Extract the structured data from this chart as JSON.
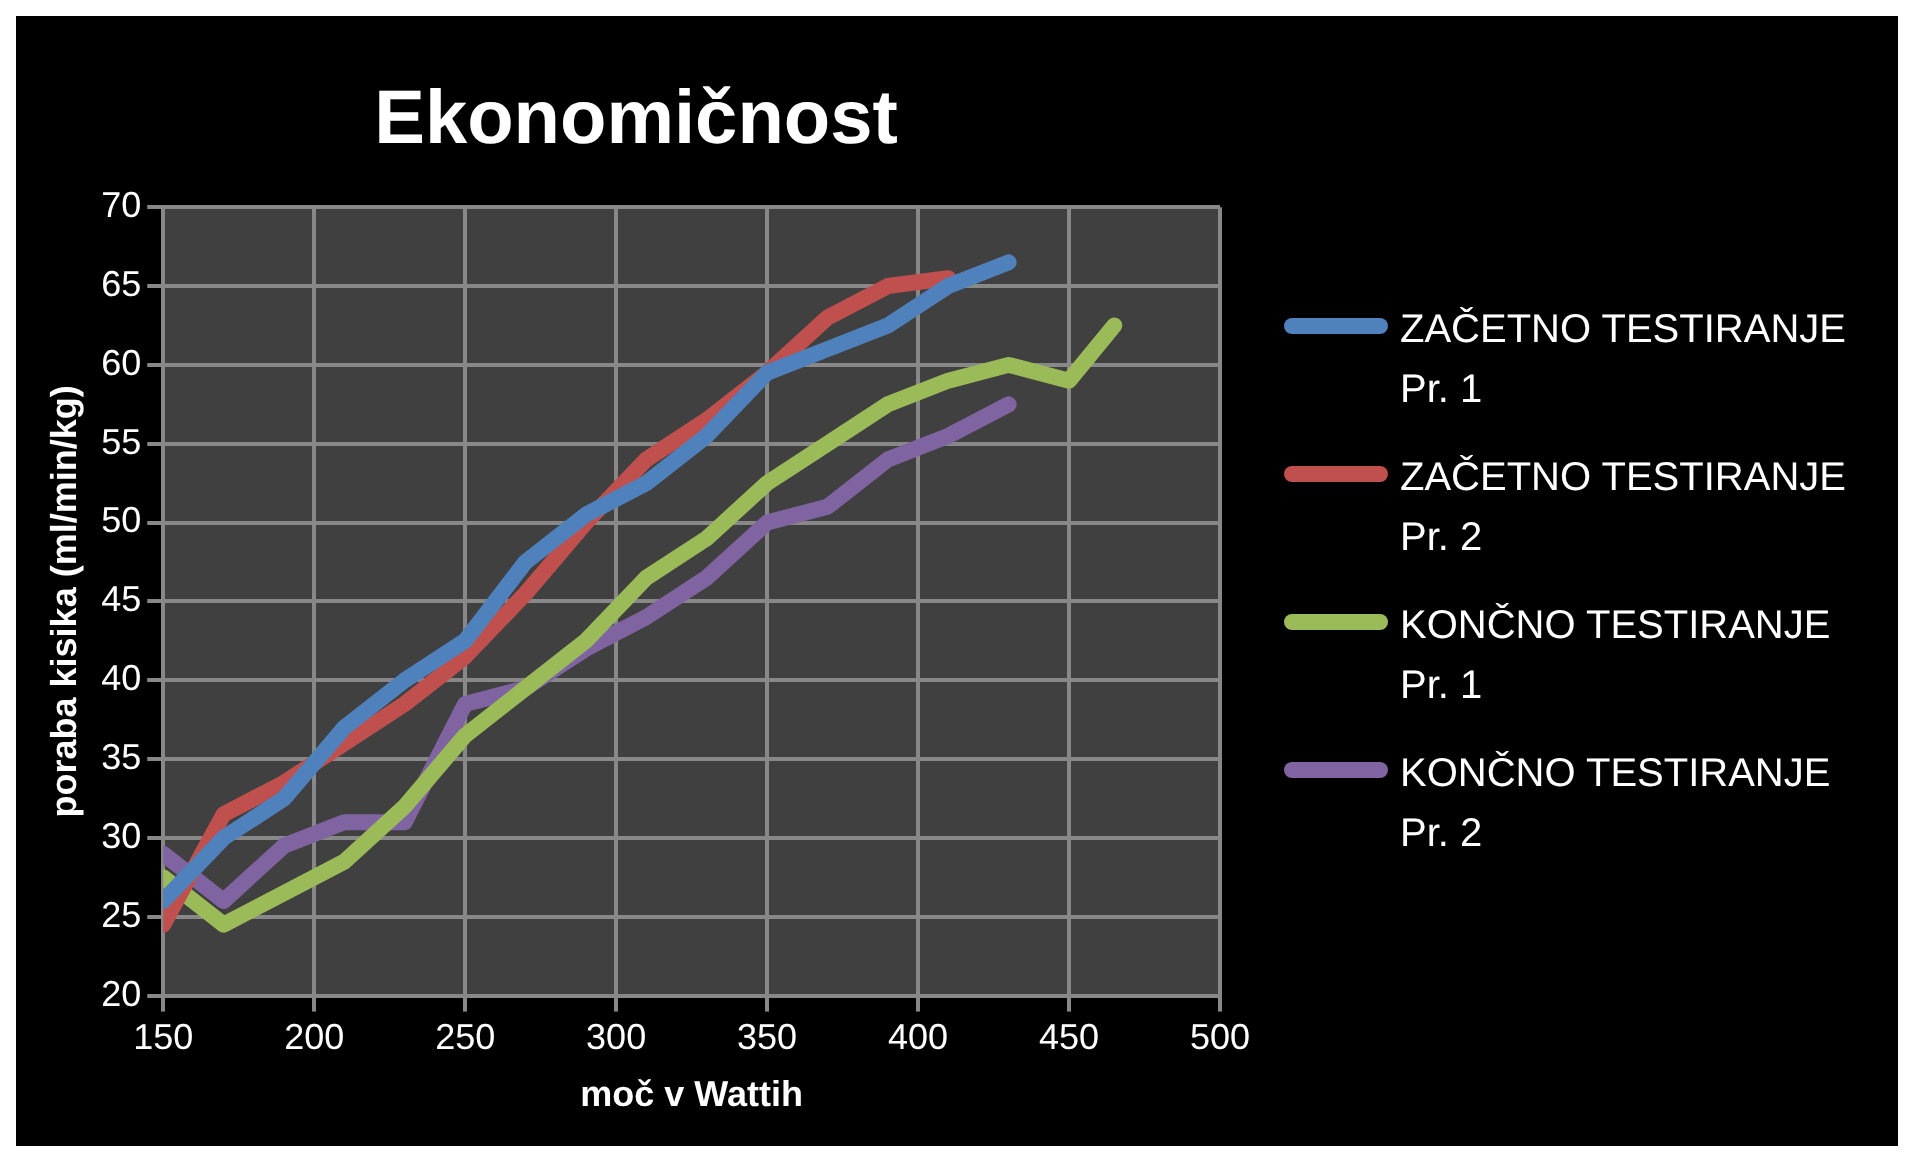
{
  "chart_data": {
    "type": "line",
    "title": "Ekonomičnost",
    "xlabel": "moč v Wattih",
    "ylabel": "poraba kisika (ml/min/kg)",
    "xlim": [
      150,
      500
    ],
    "xticks": [
      150,
      200,
      250,
      300,
      350,
      400,
      450,
      500
    ],
    "ylim": [
      20,
      70
    ],
    "yticks": [
      20,
      25,
      30,
      35,
      40,
      45,
      50,
      55,
      60,
      65,
      70
    ],
    "grid": true,
    "legend": "right",
    "marker": "none",
    "line_style": "solid",
    "series": [
      {
        "name": "ZAČETNO TESTIRANJE Pr. 1",
        "color": "#4f81bd",
        "x": [
          150,
          170,
          190,
          210,
          230,
          250,
          270,
          290,
          310,
          330,
          350,
          370,
          390,
          410,
          430
        ],
        "values": [
          26,
          30,
          32.5,
          37,
          40,
          42.5,
          47.5,
          50.5,
          52.5,
          55.5,
          59.5,
          61,
          62.5,
          65,
          66.5
        ]
      },
      {
        "name": "ZAČETNO TESTIRANJE Pr. 2",
        "color": "#c0504d",
        "x": [
          150,
          170,
          190,
          210,
          230,
          250,
          270,
          290,
          310,
          330,
          350,
          370,
          390,
          410
        ],
        "values": [
          24.5,
          31.5,
          33.5,
          36,
          38.5,
          41.5,
          45.5,
          50,
          54,
          56.5,
          59.5,
          63,
          65,
          65.5
        ]
      },
      {
        "name": "KONČNO TESTIRANJE Pr. 1",
        "color": "#9bbb59",
        "x": [
          150,
          170,
          190,
          210,
          230,
          250,
          270,
          290,
          310,
          330,
          350,
          370,
          390,
          410,
          430,
          450,
          465
        ],
        "values": [
          27.5,
          24.5,
          26.5,
          28.5,
          32,
          36.5,
          39.5,
          42.5,
          46.5,
          49,
          52.5,
          55,
          57.5,
          59,
          60,
          59,
          62.5
        ]
      },
      {
        "name": "KONČNO TESTIRANJE Pr. 2",
        "color": "#8064a2",
        "x": [
          150,
          170,
          190,
          210,
          230,
          250,
          270,
          290,
          310,
          330,
          350,
          370,
          390,
          410,
          430
        ],
        "values": [
          29,
          26,
          29.5,
          31,
          31,
          38.5,
          39.5,
          42,
          44,
          46.5,
          50,
          51,
          54,
          55.5,
          57.5
        ]
      }
    ]
  }
}
